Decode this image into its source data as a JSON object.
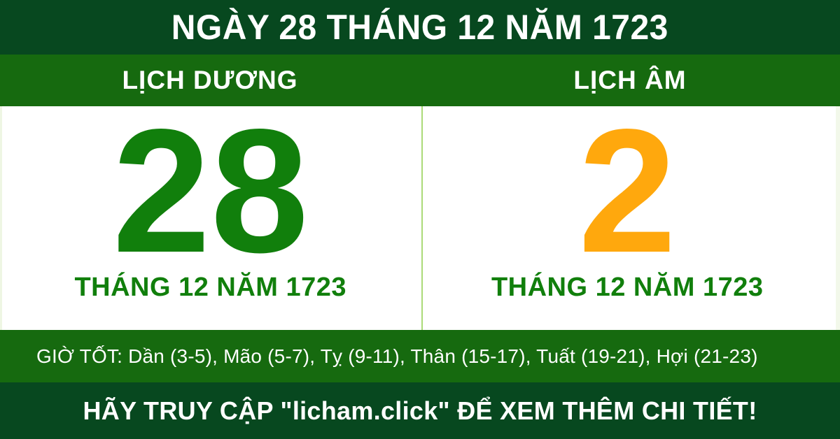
{
  "banner": {
    "title": "NGÀY 28 THÁNG 12 NĂM 1723"
  },
  "calendar": {
    "solar": {
      "label": "LỊCH DƯƠNG",
      "day": "28",
      "month_year": "THÁNG 12 NĂM 1723",
      "day_color": "#117f0c"
    },
    "lunar": {
      "label": "LỊCH ÂM",
      "day": "2",
      "month_year": "THÁNG 12 NĂM 1723",
      "day_color": "#ffa80d"
    }
  },
  "good_hours": {
    "text": "GIỜ TỐT: Dần (3-5), Mão (5-7), Tỵ (9-11), Thân (15-17), Tuất (19-21), Hợi (21-23)"
  },
  "footer": {
    "text": "HÃY TRUY CẬP \"licham.click\" ĐỂ XEM THÊM CHI TIẾT!"
  },
  "colors": {
    "dark_green": "#07481f",
    "band_green": "#166a0f",
    "text_green": "#117f0c",
    "accent_orange": "#ffa80d",
    "divider_light_green": "#abdb78",
    "panel_white": "#ffffff"
  }
}
